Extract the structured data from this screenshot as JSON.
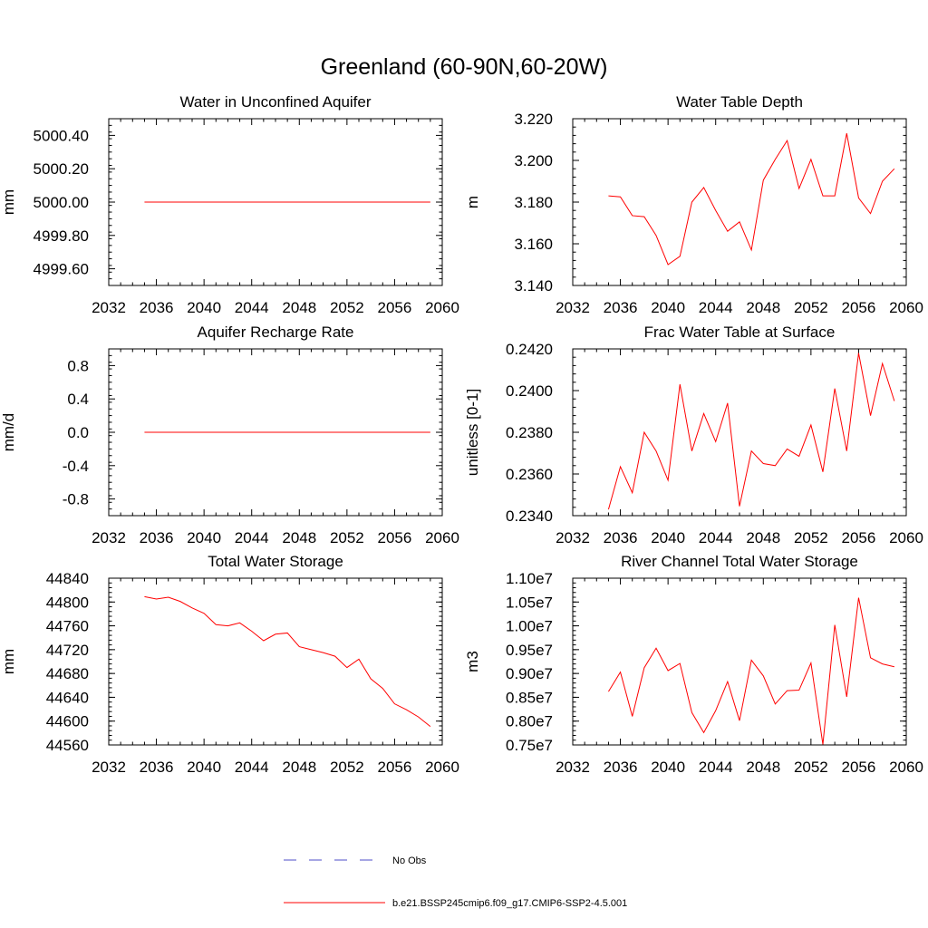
{
  "figure": {
    "title": "Greenland (60-90N,60-20W)",
    "legend": [
      {
        "label": "No Obs",
        "color": "#4d4dc8",
        "style": "dashed"
      },
      {
        "label": "b.e21.BSSP245cmip6.f09_g17.CMIP6-SSP2-4.5.001",
        "color": "#ff0000",
        "style": "solid"
      }
    ]
  },
  "chart_data": [
    {
      "type": "line",
      "title": "Water in Unconfined Aquifer",
      "ylabel": "mm",
      "xlim": [
        2032,
        2060
      ],
      "ylim": [
        4999.5,
        5000.5
      ],
      "xticks": [
        2032,
        2036,
        2040,
        2044,
        2048,
        2052,
        2056,
        2060
      ],
      "yticks": [
        4999.6,
        4999.8,
        5000.0,
        5000.2,
        5000.4
      ],
      "ytick_labels": [
        "4999.60",
        "4999.80",
        "5000.00",
        "5000.20",
        "5000.40"
      ],
      "x": [
        2035,
        2036,
        2037,
        2038,
        2039,
        2040,
        2041,
        2042,
        2043,
        2044,
        2045,
        2046,
        2047,
        2048,
        2049,
        2050,
        2051,
        2052,
        2053,
        2054,
        2055,
        2056,
        2057,
        2058,
        2059
      ],
      "series": [
        {
          "color": "#ff0000",
          "values": [
            5000.0,
            5000.0,
            5000.0,
            5000.0,
            5000.0,
            5000.0,
            5000.0,
            5000.0,
            5000.0,
            5000.0,
            5000.0,
            5000.0,
            5000.0,
            5000.0,
            5000.0,
            5000.0,
            5000.0,
            5000.0,
            5000.0,
            5000.0,
            5000.0,
            5000.0,
            5000.0,
            5000.0,
            5000.0
          ]
        }
      ]
    },
    {
      "type": "line",
      "title": "Water Table Depth",
      "ylabel": "m",
      "xlim": [
        2032,
        2060
      ],
      "ylim": [
        3.14,
        3.22
      ],
      "xticks": [
        2032,
        2036,
        2040,
        2044,
        2048,
        2052,
        2056,
        2060
      ],
      "yticks": [
        3.14,
        3.16,
        3.18,
        3.2,
        3.22
      ],
      "ytick_labels": [
        "3.140",
        "3.160",
        "3.180",
        "3.200",
        "3.220"
      ],
      "x": [
        2035,
        2036,
        2037,
        2038,
        2039,
        2040,
        2041,
        2042,
        2043,
        2044,
        2045,
        2046,
        2047,
        2048,
        2049,
        2050,
        2051,
        2052,
        2053,
        2054,
        2055,
        2056,
        2057,
        2058,
        2059
      ],
      "series": [
        {
          "color": "#ff0000",
          "values": [
            3.183,
            3.1825,
            3.1735,
            3.173,
            3.164,
            3.15,
            3.154,
            3.18,
            3.187,
            3.176,
            3.166,
            3.1705,
            3.157,
            3.1905,
            3.2005,
            3.2095,
            3.1865,
            3.2005,
            3.183,
            3.183,
            3.213,
            3.182,
            3.1745,
            3.19,
            3.196
          ]
        }
      ]
    },
    {
      "type": "line",
      "title": "Aquifer Recharge Rate",
      "ylabel": "mm/d",
      "xlim": [
        2032,
        2060
      ],
      "ylim": [
        -1.0,
        1.0
      ],
      "xticks": [
        2032,
        2036,
        2040,
        2044,
        2048,
        2052,
        2056,
        2060
      ],
      "yticks": [
        -0.8,
        -0.4,
        0.0,
        0.4,
        0.8
      ],
      "ytick_labels": [
        "-0.8",
        "-0.4",
        "0.0",
        "0.4",
        "0.8"
      ],
      "x": [
        2035,
        2036,
        2037,
        2038,
        2039,
        2040,
        2041,
        2042,
        2043,
        2044,
        2045,
        2046,
        2047,
        2048,
        2049,
        2050,
        2051,
        2052,
        2053,
        2054,
        2055,
        2056,
        2057,
        2058,
        2059
      ],
      "series": [
        {
          "color": "#ff0000",
          "values": [
            0.0,
            0.0,
            0.0,
            0.0,
            0.0,
            0.0,
            0.0,
            0.0,
            0.0,
            0.0,
            0.0,
            0.0,
            0.0,
            0.0,
            0.0,
            0.0,
            0.0,
            0.0,
            0.0,
            0.0,
            0.0,
            0.0,
            0.0,
            0.0,
            0.0
          ]
        }
      ]
    },
    {
      "type": "line",
      "title": "Frac Water Table at Surface",
      "ylabel": "unitless [0-1]",
      "xlim": [
        2032,
        2060
      ],
      "ylim": [
        0.234,
        0.242
      ],
      "xticks": [
        2032,
        2036,
        2040,
        2044,
        2048,
        2052,
        2056,
        2060
      ],
      "yticks": [
        0.234,
        0.236,
        0.238,
        0.24,
        0.242
      ],
      "ytick_labels": [
        "0.2340",
        "0.2360",
        "0.2380",
        "0.2400",
        "0.2420"
      ],
      "x": [
        2035,
        2036,
        2037,
        2038,
        2039,
        2040,
        2041,
        2042,
        2043,
        2044,
        2045,
        2046,
        2047,
        2048,
        2049,
        2050,
        2051,
        2052,
        2053,
        2054,
        2055,
        2056,
        2057,
        2058,
        2059
      ],
      "series": [
        {
          "color": "#ff0000",
          "values": [
            0.2343,
            0.23635,
            0.2351,
            0.238,
            0.2371,
            0.2357,
            0.2403,
            0.2371,
            0.2389,
            0.23755,
            0.2394,
            0.23445,
            0.2371,
            0.2365,
            0.2364,
            0.2372,
            0.23685,
            0.23835,
            0.2361,
            0.2401,
            0.2371,
            0.2418,
            0.2388,
            0.2413,
            0.2395
          ]
        }
      ]
    },
    {
      "type": "line",
      "title": "Total Water Storage",
      "ylabel": "mm",
      "xlim": [
        2032,
        2060
      ],
      "ylim": [
        44560,
        44840
      ],
      "xticks": [
        2032,
        2036,
        2040,
        2044,
        2048,
        2052,
        2056,
        2060
      ],
      "yticks": [
        44560,
        44600,
        44640,
        44680,
        44720,
        44760,
        44800,
        44840
      ],
      "ytick_labels": [
        "44560",
        "44600",
        "44640",
        "44680",
        "44720",
        "44760",
        "44800",
        "44840"
      ],
      "x": [
        2035,
        2036,
        2037,
        2038,
        2039,
        2040,
        2041,
        2042,
        2043,
        2044,
        2045,
        2046,
        2047,
        2048,
        2049,
        2050,
        2051,
        2052,
        2053,
        2054,
        2055,
        2056,
        2057,
        2058,
        2059
      ],
      "series": [
        {
          "color": "#ff0000",
          "values": [
            44809,
            44805,
            44808,
            44801,
            44790,
            44781,
            44762,
            44760,
            44765,
            44751,
            44735,
            44746,
            44748,
            44725,
            44720,
            44715,
            44709,
            44690,
            44704,
            44671,
            44655,
            44629,
            44619,
            44607,
            44591
          ]
        }
      ]
    },
    {
      "type": "line",
      "title": "River Channel Total Water Storage",
      "ylabel": "m3",
      "xlim": [
        2032,
        2060
      ],
      "ylim": [
        7500000,
        11000000
      ],
      "xticks": [
        2032,
        2036,
        2040,
        2044,
        2048,
        2052,
        2056,
        2060
      ],
      "yticks": [
        7500000,
        8000000,
        8500000,
        9000000,
        9500000,
        10000000,
        10500000,
        11000000
      ],
      "ytick_labels": [
        "0.75e7",
        "0.80e7",
        "0.85e7",
        "0.90e7",
        "0.95e7",
        "1.00e7",
        "1.05e7",
        "1.10e7"
      ],
      "x": [
        2035,
        2036,
        2037,
        2038,
        2039,
        2040,
        2041,
        2042,
        2043,
        2044,
        2045,
        2046,
        2047,
        2048,
        2049,
        2050,
        2051,
        2052,
        2053,
        2054,
        2055,
        2056,
        2057,
        2058,
        2059
      ],
      "series": [
        {
          "color": "#ff0000",
          "values": [
            8620000,
            9030000,
            8100000,
            9120000,
            9530000,
            9060000,
            9210000,
            8180000,
            7760000,
            8220000,
            8830000,
            8010000,
            9280000,
            8950000,
            8360000,
            8640000,
            8650000,
            9220000,
            7510000,
            10020000,
            8510000,
            10590000,
            9330000,
            9200000,
            9140000
          ]
        }
      ]
    }
  ]
}
